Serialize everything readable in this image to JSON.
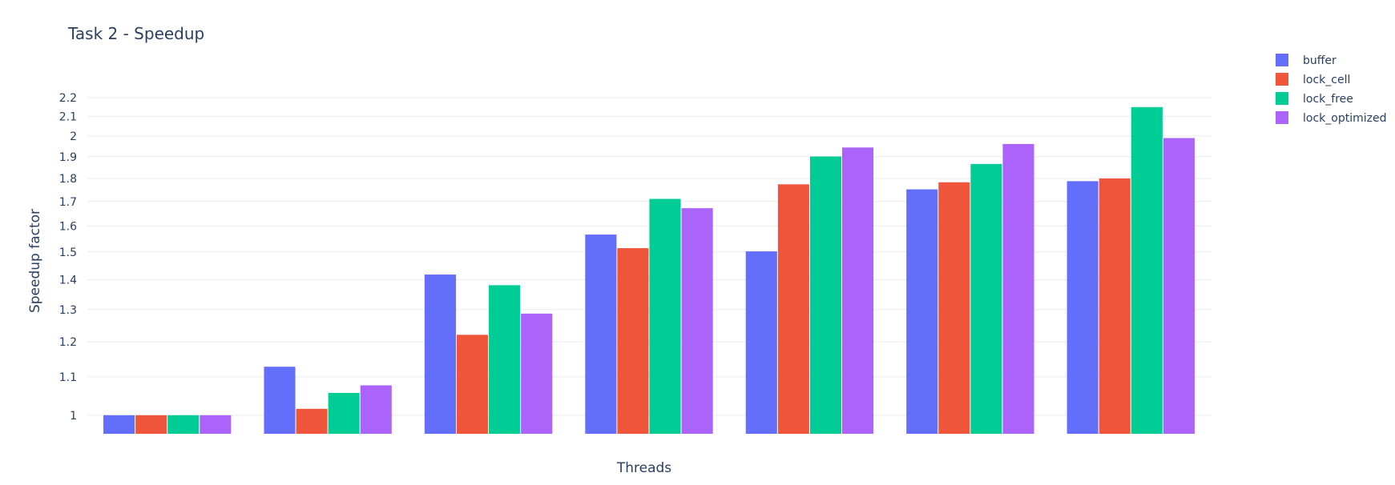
{
  "chart_data": {
    "type": "bar",
    "title": "Task 2 - Speedup",
    "xlabel": "Threads",
    "ylabel": "Speedup factor",
    "y_scale": "log",
    "ylim": [
      0.955,
      2.2
    ],
    "yticks": [
      1,
      1.1,
      1.2,
      1.3,
      1.4,
      1.5,
      1.6,
      1.7,
      1.8,
      1.9,
      2,
      2.1,
      2.2
    ],
    "grid": true,
    "legend_position": "top-right",
    "categories": [
      "",
      "",
      "",
      "",
      "",
      "",
      ""
    ],
    "series": [
      {
        "name": "buffer",
        "color": "#636efa",
        "values": [
          1.0,
          1.128,
          1.418,
          1.566,
          1.502,
          1.752,
          1.788
        ]
      },
      {
        "name": "lock_cell",
        "color": "#ef553b",
        "values": [
          1.0,
          1.016,
          1.221,
          1.514,
          1.774,
          1.783,
          1.8
        ]
      },
      {
        "name": "lock_free",
        "color": "#00cc96",
        "values": [
          1.0,
          1.057,
          1.381,
          1.711,
          1.901,
          1.866,
          2.149
        ]
      },
      {
        "name": "lock_optimized",
        "color": "#ab63fa",
        "values": [
          1.0,
          1.077,
          1.287,
          1.672,
          1.944,
          1.961,
          1.99
        ]
      }
    ]
  }
}
